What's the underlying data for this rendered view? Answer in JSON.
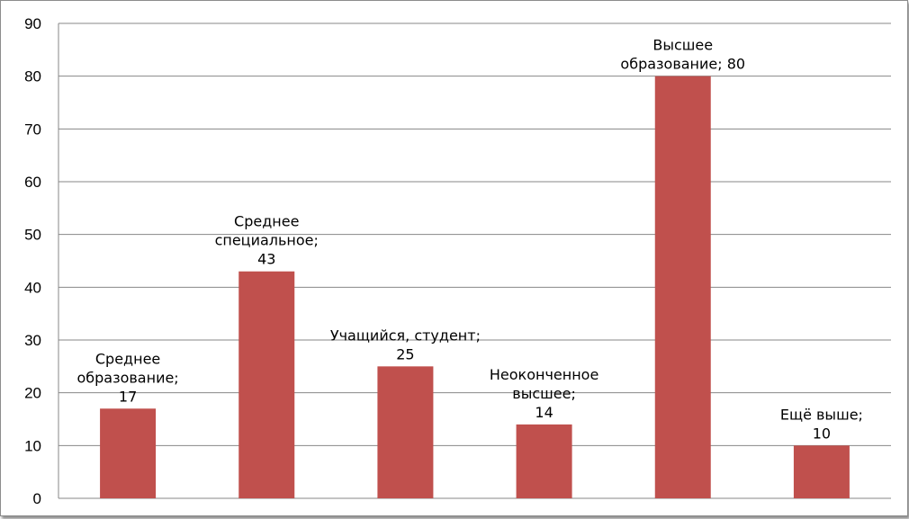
{
  "chart_data": {
    "type": "bar",
    "title": "",
    "xlabel": "",
    "ylabel": "",
    "categories": [
      "Среднее образование",
      "Среднее специальное",
      "Учащийся, студент",
      "Неоконченное высшее",
      "Высшее образование",
      "Ещё выше"
    ],
    "values": [
      17,
      43,
      25,
      14,
      80,
      10
    ],
    "data_labels": [
      [
        "Среднее",
        "образование;",
        "17"
      ],
      [
        "Среднее",
        "специальное;",
        "43"
      ],
      [
        "Учащийся, студент;",
        "25"
      ],
      [
        "Неоконченное",
        "высшее;",
        "14"
      ],
      [
        "Высшее",
        "образование; 80"
      ],
      [
        "Ещё выше;",
        "10"
      ]
    ],
    "ylim": [
      0,
      90
    ],
    "yticks": [
      0,
      10,
      20,
      30,
      40,
      50,
      60,
      70,
      80,
      90
    ],
    "grid": true,
    "legend": "none",
    "colors": {
      "bar": "#c0504d",
      "grid": "#878787",
      "axis": "#878787"
    }
  }
}
